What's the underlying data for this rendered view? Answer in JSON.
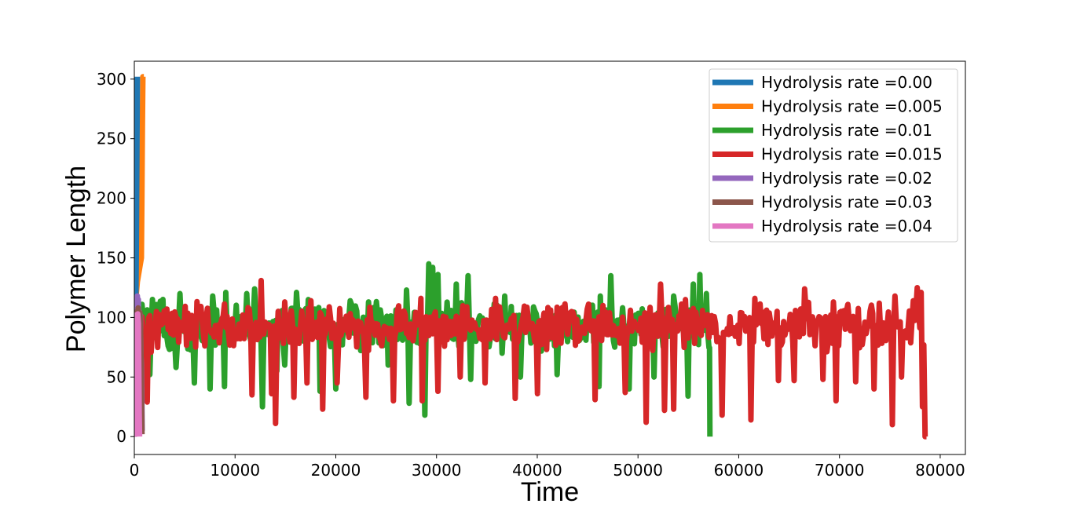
{
  "chart_data": {
    "type": "line",
    "title": "",
    "xlabel": "Time",
    "ylabel": "Polymer Length",
    "xlim": [
      0,
      82500
    ],
    "ylim": [
      -15,
      315
    ],
    "xticks": [
      0,
      10000,
      20000,
      30000,
      40000,
      50000,
      60000,
      70000,
      80000
    ],
    "yticks": [
      0,
      50,
      100,
      150,
      200,
      250,
      300
    ],
    "grid": false,
    "legend_position": "top-right",
    "series": [
      {
        "name": "Hydrolysis rate =0.00",
        "color": "#1f77b4",
        "points": [
          [
            0,
            0
          ],
          [
            50,
            20
          ],
          [
            100,
            60
          ],
          [
            150,
            110
          ],
          [
            200,
            160
          ],
          [
            250,
            230
          ],
          [
            300,
            302
          ]
        ]
      },
      {
        "name": "Hydrolysis rate =0.005",
        "color": "#ff7f0e",
        "points": [
          [
            0,
            0
          ],
          [
            100,
            60
          ],
          [
            200,
            120
          ],
          [
            300,
            130
          ],
          [
            400,
            135
          ],
          [
            500,
            140
          ],
          [
            600,
            145
          ],
          [
            700,
            150
          ],
          [
            750,
            200
          ],
          [
            800,
            260
          ],
          [
            850,
            302
          ],
          [
            950,
            302
          ]
        ]
      },
      {
        "name": "Hydrolysis rate =0.01",
        "color": "#2ca02c",
        "trace": {
          "end": 57100,
          "base": 92,
          "amplitude": 26,
          "dips": [
            [
              1500,
              52
            ],
            [
              4200,
              58
            ],
            [
              6000,
              45
            ],
            [
              7500,
              40
            ],
            [
              9000,
              42
            ],
            [
              12800,
              25
            ],
            [
              14200,
              55
            ],
            [
              15000,
              60
            ],
            [
              18500,
              38
            ],
            [
              20000,
              40
            ],
            [
              25200,
              60
            ],
            [
              27300,
              28
            ],
            [
              28800,
              18
            ],
            [
              33400,
              48
            ],
            [
              36500,
              70
            ],
            [
              38400,
              50
            ],
            [
              42000,
              52
            ],
            [
              46200,
              42
            ],
            [
              49200,
              40
            ],
            [
              51600,
              50
            ],
            [
              55000,
              34
            ],
            [
              56800,
              40
            ]
          ],
          "peaks": [
            [
              4500,
              120
            ],
            [
              7800,
              118
            ],
            [
              9100,
              121
            ],
            [
              11200,
              120
            ],
            [
              12000,
              124
            ],
            [
              16100,
              121
            ],
            [
              17300,
              115
            ],
            [
              21500,
              114
            ],
            [
              23300,
              113
            ],
            [
              27000,
              123
            ],
            [
              29200,
              145
            ],
            [
              29700,
              142
            ],
            [
              30100,
              136
            ],
            [
              32000,
              128
            ],
            [
              33200,
              135
            ],
            [
              36800,
              118
            ],
            [
              46300,
              118
            ],
            [
              47300,
              135
            ],
            [
              53500,
              118
            ],
            [
              55500,
              128
            ],
            [
              56200,
              136
            ],
            [
              56800,
              120
            ]
          ]
        }
      },
      {
        "name": "Hydrolysis rate =0.015",
        "color": "#d62728",
        "trace": {
          "end": 78600,
          "base": 92,
          "amplitude": 24,
          "dips": [
            [
              1300,
              29
            ],
            [
              11700,
              35
            ],
            [
              13600,
              36
            ],
            [
              14100,
              11
            ],
            [
              15800,
              33
            ],
            [
              17100,
              45
            ],
            [
              18700,
              23
            ],
            [
              20200,
              45
            ],
            [
              23000,
              33
            ],
            [
              25800,
              30
            ],
            [
              28600,
              30
            ],
            [
              30200,
              38
            ],
            [
              32400,
              50
            ],
            [
              34800,
              45
            ],
            [
              37800,
              32
            ],
            [
              40000,
              36
            ],
            [
              45800,
              31
            ],
            [
              48800,
              37
            ],
            [
              50800,
              12
            ],
            [
              52600,
              22
            ],
            [
              53600,
              23
            ],
            [
              58400,
              18
            ],
            [
              61200,
              14
            ],
            [
              64000,
              47
            ],
            [
              65500,
              47
            ],
            [
              68400,
              48
            ],
            [
              69700,
              30
            ],
            [
              71600,
              46
            ],
            [
              73500,
              40
            ],
            [
              75300,
              10
            ],
            [
              76200,
              50
            ],
            [
              78200,
              25
            ],
            [
              78550,
              0
            ]
          ],
          "peaks": [
            [
              12600,
              131
            ],
            [
              14900,
              113
            ],
            [
              17500,
              114
            ],
            [
              28500,
              116
            ],
            [
              35900,
              116
            ],
            [
              46500,
              110
            ],
            [
              52300,
              128
            ],
            [
              54700,
              115
            ],
            [
              61600,
              116
            ],
            [
              66600,
              124
            ],
            [
              69400,
              113
            ],
            [
              74000,
              112
            ],
            [
              75500,
              118
            ],
            [
              77300,
              114
            ],
            [
              77800,
              125
            ],
            [
              78100,
              121
            ]
          ]
        }
      },
      {
        "name": "Hydrolysis rate =0.02",
        "color": "#9467bd",
        "points": [
          [
            0,
            0
          ],
          [
            50,
            40
          ],
          [
            100,
            80
          ],
          [
            150,
            100
          ],
          [
            200,
            115
          ],
          [
            300,
            118
          ],
          [
            350,
            110
          ],
          [
            400,
            115
          ],
          [
            450,
            95
          ],
          [
            500,
            105
          ],
          [
            550,
            80
          ],
          [
            600,
            102
          ],
          [
            650,
            70
          ],
          [
            700,
            60
          ],
          [
            750,
            30
          ],
          [
            780,
            5
          ]
        ]
      },
      {
        "name": "Hydrolysis rate =0.03",
        "color": "#8c564b",
        "points": [
          [
            0,
            0
          ],
          [
            60,
            40
          ],
          [
            120,
            80
          ],
          [
            200,
            100
          ],
          [
            260,
            105
          ],
          [
            320,
            95
          ],
          [
            380,
            108
          ],
          [
            440,
            100
          ],
          [
            500,
            96
          ],
          [
            560,
            104
          ],
          [
            620,
            90
          ],
          [
            680,
            60
          ],
          [
            720,
            30
          ],
          [
            760,
            2
          ]
        ]
      },
      {
        "name": "Hydrolysis rate =0.04",
        "color": "#e377c2",
        "points": [
          [
            0,
            0
          ],
          [
            40,
            30
          ],
          [
            80,
            70
          ],
          [
            120,
            95
          ],
          [
            160,
            102
          ],
          [
            220,
            100
          ],
          [
            280,
            96
          ],
          [
            340,
            103
          ],
          [
            400,
            95
          ],
          [
            440,
            60
          ],
          [
            480,
            20
          ],
          [
            520,
            0
          ]
        ]
      }
    ]
  }
}
